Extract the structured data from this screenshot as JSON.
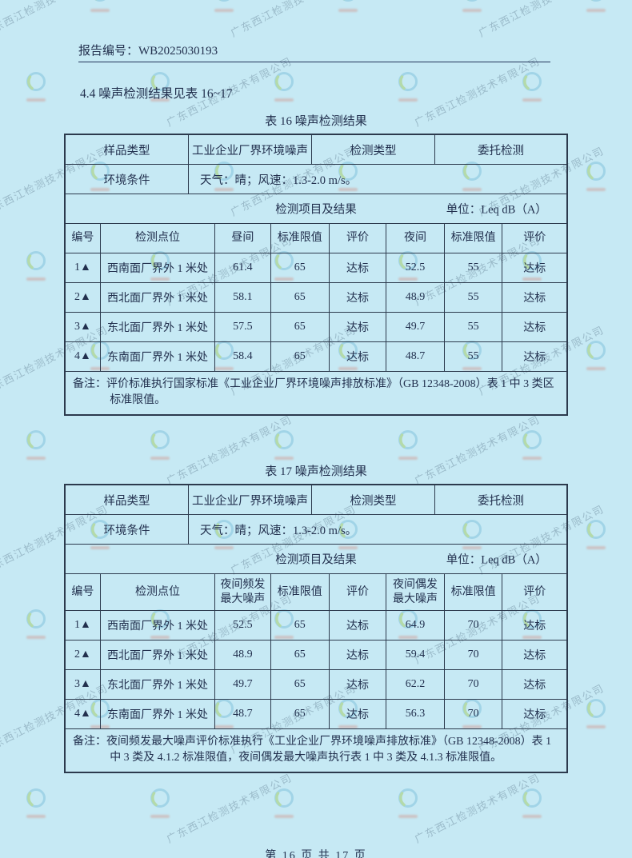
{
  "page": {
    "report_label": "报告编号：WB2025030193",
    "section_heading": "4.4 噪声检测结果见表 16~17",
    "footer": "第 16 页 共 17 页",
    "colors": {
      "background": "#c6e9f4",
      "ink": "#22304e",
      "border": "#2c3a4d"
    }
  },
  "watermark": {
    "text": "广东西江检测技术有限公司",
    "colors": {
      "ring": "#7ec0dc",
      "leaf": "#a4cd62",
      "caption": "#d86a56"
    }
  },
  "table16": {
    "title": "表 16 噪声检测结果",
    "meta": {
      "sample_type_label": "样品类型",
      "sample_type_value": "工业企业厂界环境噪声",
      "test_type_label": "检测类型",
      "test_type_value": "委托检测",
      "env_label": "环境条件",
      "env_value": "天气：晴；风速：1.3-2.0 m/s。",
      "section_label": "检测项目及结果",
      "unit_label": "单位：Leq dB（A）"
    },
    "columns": [
      "编号",
      "检测点位",
      "昼间",
      "标准限值",
      "评价",
      "夜间",
      "标准限值",
      "评价"
    ],
    "rows": [
      [
        "1▲",
        "西南面厂界外 1 米处",
        "61.4",
        "65",
        "达标",
        "52.5",
        "55",
        "达标"
      ],
      [
        "2▲",
        "西北面厂界外 1 米处",
        "58.1",
        "65",
        "达标",
        "48.9",
        "55",
        "达标"
      ],
      [
        "3▲",
        "东北面厂界外 1 米处",
        "57.5",
        "65",
        "达标",
        "49.7",
        "55",
        "达标"
      ],
      [
        "4▲",
        "东南面厂界外 1 米处",
        "58.4",
        "65",
        "达标",
        "48.7",
        "55",
        "达标"
      ]
    ],
    "note_label": "备注：",
    "note": "评价标准执行国家标准《工业企业厂界环境噪声排放标准》（GB 12348-2008）表 1 中 3 类区标准限值。"
  },
  "table17": {
    "title": "表 17 噪声检测结果",
    "meta": {
      "sample_type_label": "样品类型",
      "sample_type_value": "工业企业厂界环境噪声",
      "test_type_label": "检测类型",
      "test_type_value": "委托检测",
      "env_label": "环境条件",
      "env_value": "天气：晴；风速：1.3-2.0 m/s。",
      "section_label": "检测项目及结果",
      "unit_label": "单位：Leq dB（A）"
    },
    "columns": [
      "编号",
      "检测点位",
      "夜间频发最大噪声",
      "标准限值",
      "评价",
      "夜间偶发最大噪声",
      "标准限值",
      "评价"
    ],
    "rows": [
      [
        "1▲",
        "西南面厂界外 1 米处",
        "52.5",
        "65",
        "达标",
        "64.9",
        "70",
        "达标"
      ],
      [
        "2▲",
        "西北面厂界外 1 米处",
        "48.9",
        "65",
        "达标",
        "59.4",
        "70",
        "达标"
      ],
      [
        "3▲",
        "东北面厂界外 1 米处",
        "49.7",
        "65",
        "达标",
        "62.2",
        "70",
        "达标"
      ],
      [
        "4▲",
        "东南面厂界外 1 米处",
        "48.7",
        "65",
        "达标",
        "56.3",
        "70",
        "达标"
      ]
    ],
    "note_label": "备注：",
    "note": "夜间频发最大噪声评价标准执行《工业企业厂界环境噪声排放标准》（GB 12348-2008）表 1 中 3 类及 4.1.2 标准限值，夜间偶发最大噪声执行表 1 中 3 类及 4.1.3 标准限值。"
  }
}
